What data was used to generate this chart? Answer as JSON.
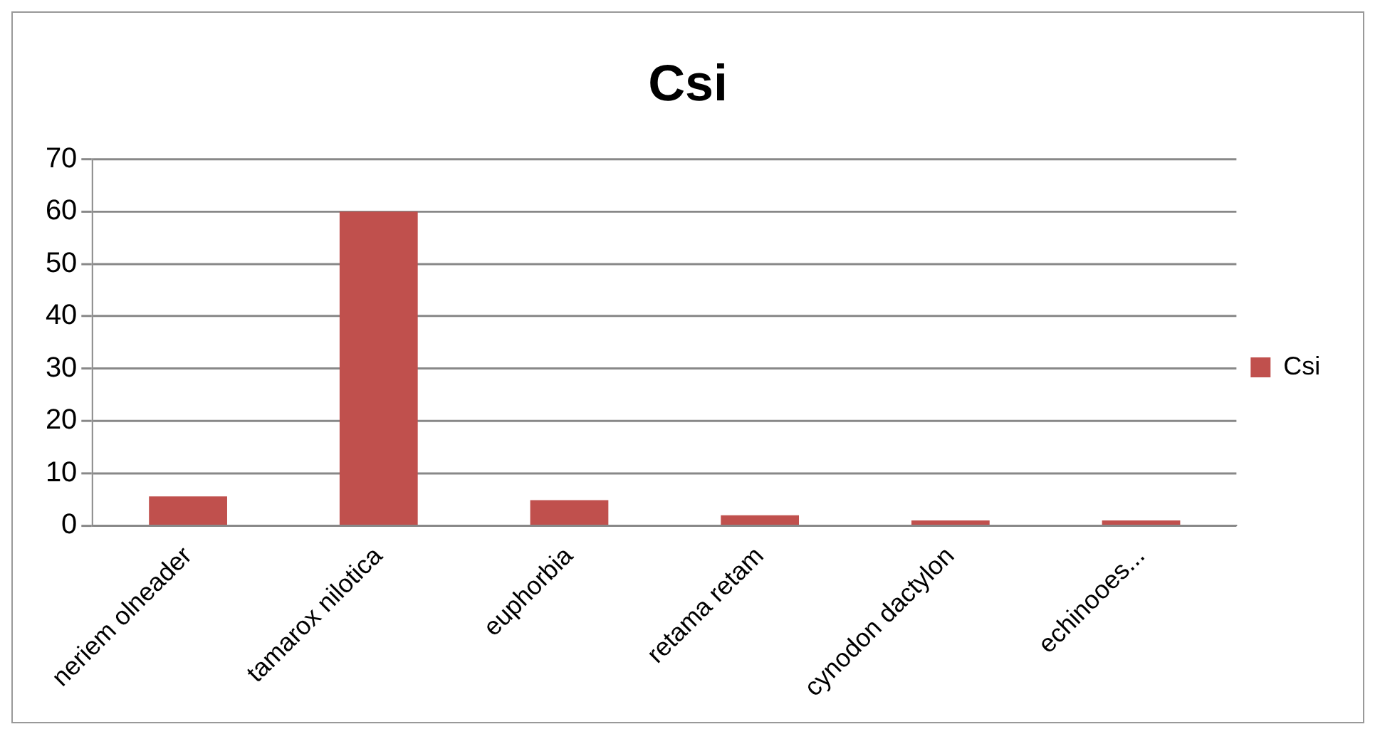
{
  "chart_data": {
    "type": "bar",
    "title": "Csi",
    "categories": [
      "neriem olneader",
      "tamarox nilotica",
      "euphorbia",
      "retama retam",
      "cynodon dactylon",
      "echinooes..."
    ],
    "series": [
      {
        "name": "Csi",
        "color": "#c0504d",
        "values": [
          5.6,
          60,
          4.9,
          2,
          1,
          1
        ]
      }
    ],
    "ylim": [
      0,
      70
    ],
    "yticks": [
      0,
      10,
      20,
      30,
      40,
      50,
      60,
      70
    ],
    "grid": "y",
    "legend": "right"
  }
}
